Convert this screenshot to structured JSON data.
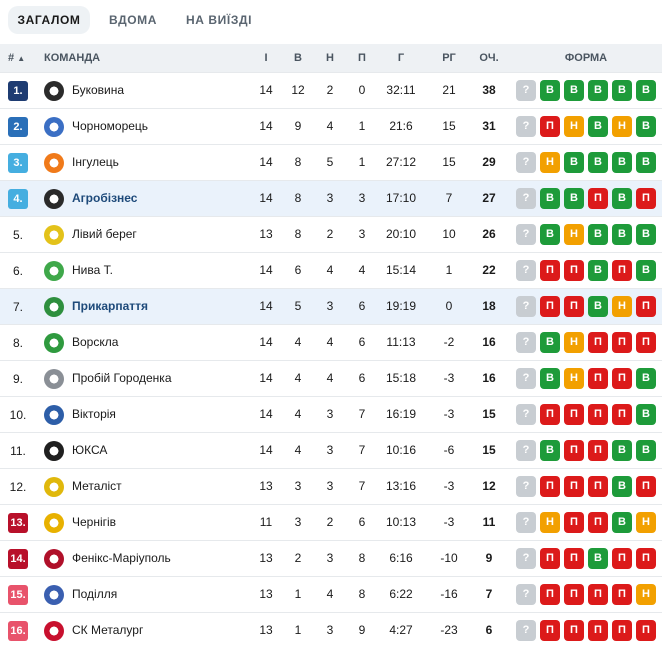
{
  "tabs": [
    {
      "label": "ЗАГАЛОМ",
      "active": true
    },
    {
      "label": "ВДОМА",
      "active": false
    },
    {
      "label": "НА ВИЇЗДІ",
      "active": false
    }
  ],
  "columns": {
    "rank": "#",
    "sort_indicator": "▲",
    "team": "КОМАНДА",
    "played": "І",
    "won": "В",
    "drawn": "Н",
    "lost": "П",
    "goals": "Г",
    "goal_diff": "РГ",
    "points": "ОЧ.",
    "form": "ФОРМА"
  },
  "colors": {
    "promotion": "#1e3c72",
    "promotion_playoff": "#2a6fb8",
    "playoff": "#45aee0",
    "relegation_playoff": "#b8102a",
    "relegation": "#e8536b",
    "win": "#1e9b3a",
    "draw": "#f2a000",
    "loss": "#dc1a1a",
    "upcoming": "#c8cdd2"
  },
  "teams": [
    {
      "rank": "1.",
      "zone": "promotion",
      "name": "Буковина",
      "logo_color": "#2b2b2b",
      "played": "14",
      "won": "12",
      "drawn": "2",
      "lost": "0",
      "goals": "32:11",
      "diff": "21",
      "points": "38",
      "form": [
        "?",
        "В",
        "В",
        "В",
        "В",
        "В"
      ]
    },
    {
      "rank": "2.",
      "zone": "promotion_playoff",
      "name": "Чорноморець",
      "logo_color": "#3b6fc4",
      "played": "14",
      "won": "9",
      "drawn": "4",
      "lost": "1",
      "goals": "21:6",
      "diff": "15",
      "points": "31",
      "form": [
        "?",
        "П",
        "Н",
        "В",
        "Н",
        "В"
      ]
    },
    {
      "rank": "3.",
      "zone": "playoff",
      "name": "Інгулець",
      "logo_color": "#f07a1a",
      "played": "14",
      "won": "8",
      "drawn": "5",
      "lost": "1",
      "goals": "27:12",
      "diff": "15",
      "points": "29",
      "form": [
        "?",
        "Н",
        "В",
        "В",
        "В",
        "В"
      ]
    },
    {
      "rank": "4.",
      "zone": "playoff",
      "name": "Агробізнес",
      "logo_color": "#2a2a2a",
      "highlight": true,
      "played": "14",
      "won": "8",
      "drawn": "3",
      "lost": "3",
      "goals": "17:10",
      "diff": "7",
      "points": "27",
      "form": [
        "?",
        "В",
        "В",
        "П",
        "В",
        "П"
      ]
    },
    {
      "rank": "5.",
      "zone": "none",
      "name": "Лівий берег",
      "logo_color": "#e3c21a",
      "played": "13",
      "won": "8",
      "drawn": "2",
      "lost": "3",
      "goals": "20:10",
      "diff": "10",
      "points": "26",
      "form": [
        "?",
        "В",
        "Н",
        "В",
        "В",
        "В"
      ]
    },
    {
      "rank": "6.",
      "zone": "none",
      "name": "Нива Т.",
      "logo_color": "#3fa84a",
      "played": "14",
      "won": "6",
      "drawn": "4",
      "lost": "4",
      "goals": "15:14",
      "diff": "1",
      "points": "22",
      "form": [
        "?",
        "П",
        "П",
        "В",
        "П",
        "В"
      ]
    },
    {
      "rank": "7.",
      "zone": "none",
      "name": "Прикарпаття",
      "logo_color": "#2e8f3e",
      "highlight": true,
      "played": "14",
      "won": "5",
      "drawn": "3",
      "lost": "6",
      "goals": "19:19",
      "diff": "0",
      "points": "18",
      "form": [
        "?",
        "П",
        "П",
        "В",
        "Н",
        "П"
      ]
    },
    {
      "rank": "8.",
      "zone": "none",
      "name": "Ворскла",
      "logo_color": "#2f9a3f",
      "played": "14",
      "won": "4",
      "drawn": "4",
      "lost": "6",
      "goals": "11:13",
      "diff": "-2",
      "points": "16",
      "form": [
        "?",
        "В",
        "Н",
        "П",
        "П",
        "П"
      ]
    },
    {
      "rank": "9.",
      "zone": "none",
      "name": "Пробій Городенка",
      "logo_color": "#8a8f96",
      "played": "14",
      "won": "4",
      "drawn": "4",
      "lost": "6",
      "goals": "15:18",
      "diff": "-3",
      "points": "16",
      "form": [
        "?",
        "В",
        "Н",
        "П",
        "П",
        "В"
      ]
    },
    {
      "rank": "10.",
      "zone": "none",
      "name": "Вікторія",
      "logo_color": "#2d5ea8",
      "played": "14",
      "won": "4",
      "drawn": "3",
      "lost": "7",
      "goals": "16:19",
      "diff": "-3",
      "points": "15",
      "form": [
        "?",
        "П",
        "П",
        "П",
        "П",
        "В"
      ]
    },
    {
      "rank": "11.",
      "zone": "none",
      "name": "ЮКСА",
      "logo_color": "#1f1f1f",
      "played": "14",
      "won": "4",
      "drawn": "3",
      "lost": "7",
      "goals": "10:16",
      "diff": "-6",
      "points": "15",
      "form": [
        "?",
        "В",
        "П",
        "П",
        "В",
        "В"
      ]
    },
    {
      "rank": "12.",
      "zone": "none",
      "name": "Металіст",
      "logo_color": "#e0b80c",
      "played": "13",
      "won": "3",
      "drawn": "3",
      "lost": "7",
      "goals": "13:16",
      "diff": "-3",
      "points": "12",
      "form": [
        "?",
        "П",
        "П",
        "П",
        "В",
        "П"
      ]
    },
    {
      "rank": "13.",
      "zone": "relegation_playoff",
      "name": "Чернігів",
      "logo_color": "#e8b100",
      "played": "11",
      "won": "3",
      "drawn": "2",
      "lost": "6",
      "goals": "10:13",
      "diff": "-3",
      "points": "11",
      "form": [
        "?",
        "Н",
        "П",
        "П",
        "В",
        "Н"
      ]
    },
    {
      "rank": "14.",
      "zone": "relegation_playoff",
      "name": "Фенікс-Маріуполь",
      "logo_color": "#b0102a",
      "played": "13",
      "won": "2",
      "drawn": "3",
      "lost": "8",
      "goals": "6:16",
      "diff": "-10",
      "points": "9",
      "form": [
        "?",
        "П",
        "П",
        "В",
        "П",
        "П"
      ]
    },
    {
      "rank": "15.",
      "zone": "relegation",
      "name": "Поділля",
      "logo_color": "#3a5fb0",
      "played": "13",
      "won": "1",
      "drawn": "4",
      "lost": "8",
      "goals": "6:22",
      "diff": "-16",
      "points": "7",
      "form": [
        "?",
        "П",
        "П",
        "П",
        "П",
        "Н"
      ]
    },
    {
      "rank": "16.",
      "zone": "relegation",
      "name": "СК Металург",
      "logo_color": "#c8102e",
      "played": "13",
      "won": "1",
      "drawn": "3",
      "lost": "9",
      "goals": "4:27",
      "diff": "-23",
      "points": "6",
      "form": [
        "?",
        "П",
        "П",
        "П",
        "П",
        "П"
      ]
    }
  ]
}
